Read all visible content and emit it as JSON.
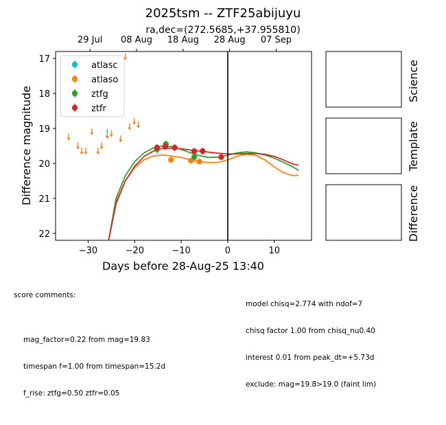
{
  "chart_data": {
    "type": "scatter",
    "title": "2025tsm -- ZTF25abijuyu",
    "subtitle": "ra,dec=(272.5685,+37.955810)",
    "xlabel": "Days before 28-Aug-25 13:40",
    "ylabel": "Difference magnitude",
    "xlim": [
      -37,
      18
    ],
    "ylim": [
      22.2,
      16.8
    ],
    "x_ticks": [
      -30,
      -20,
      -10,
      0,
      10
    ],
    "y_ticks": [
      17,
      18,
      19,
      20,
      21,
      22
    ],
    "top_axis_ticks": [
      {
        "x": -29.6,
        "label": "29 Jul"
      },
      {
        "x": -19.6,
        "label": "08 Aug"
      },
      {
        "x": -9.6,
        "label": "18 Aug"
      },
      {
        "x": 0.4,
        "label": "28 Aug"
      },
      {
        "x": 10.4,
        "label": "07 Sep"
      }
    ],
    "vline_x": 0,
    "legend_position": "upper-left",
    "series": [
      {
        "name": "atlasc",
        "color": "#17becf",
        "points": [
          [
            -25.9,
            19.1
          ]
        ],
        "limits": [
          [
            -25.9,
            19.2
          ]
        ]
      },
      {
        "name": "atlaso",
        "color": "#ff7f0e",
        "points": [
          [
            -12.2,
            19.9
          ],
          [
            -7.9,
            19.92
          ],
          [
            -6.1,
            19.95
          ]
        ],
        "limits": [
          [
            -34.2,
            19.25
          ],
          [
            -32.2,
            19.5
          ],
          [
            -31.4,
            19.65
          ],
          [
            -30.5,
            19.65
          ],
          [
            -29.2,
            19.1
          ],
          [
            -27.9,
            19.65
          ],
          [
            -27.1,
            19.5
          ],
          [
            -25.9,
            19.2
          ],
          [
            -25.0,
            19.15
          ],
          [
            -23.0,
            19.3
          ],
          [
            -22.0,
            16.95
          ],
          [
            -21.1,
            18.95
          ],
          [
            -20.1,
            18.8
          ],
          [
            -19.2,
            18.9
          ]
        ],
        "model": [
          [
            -25.6,
            22.2
          ],
          [
            -24,
            21.1
          ],
          [
            -22,
            20.5
          ],
          [
            -20,
            20.12
          ],
          [
            -18,
            19.9
          ],
          [
            -16,
            19.79
          ],
          [
            -14,
            19.76
          ],
          [
            -12,
            19.79
          ],
          [
            -10,
            19.83
          ],
          [
            -8,
            19.9
          ],
          [
            -6,
            19.95
          ],
          [
            -4,
            19.98
          ],
          [
            -2,
            19.97
          ],
          [
            0,
            19.9
          ],
          [
            2,
            19.8
          ],
          [
            4,
            19.74
          ],
          [
            6,
            19.77
          ],
          [
            8,
            19.9
          ],
          [
            10,
            20.1
          ],
          [
            12,
            20.27
          ],
          [
            14,
            20.35
          ],
          [
            15.2,
            20.34
          ]
        ]
      },
      {
        "name": "ztfg",
        "color": "#2ca02c",
        "points": [
          [
            -15.2,
            19.6
          ],
          [
            -13.3,
            19.45
          ],
          [
            -7.2,
            19.82
          ]
        ],
        "errors": [
          0.12,
          0.1,
          0.08
        ],
        "model": [
          [
            -25.6,
            22.2
          ],
          [
            -24,
            21.0
          ],
          [
            -22,
            20.35
          ],
          [
            -20,
            19.95
          ],
          [
            -18,
            19.7
          ],
          [
            -16,
            19.56
          ],
          [
            -14,
            19.5
          ],
          [
            -12,
            19.52
          ],
          [
            -10,
            19.6
          ],
          [
            -8,
            19.7
          ],
          [
            -6,
            19.78
          ],
          [
            -4,
            19.83
          ],
          [
            -2,
            19.82
          ],
          [
            0,
            19.77
          ],
          [
            2,
            19.7
          ],
          [
            4,
            19.67
          ],
          [
            6,
            19.7
          ],
          [
            8,
            19.76
          ],
          [
            10,
            19.85
          ],
          [
            12,
            19.97
          ],
          [
            14,
            20.1
          ],
          [
            15.2,
            20.2
          ]
        ]
      },
      {
        "name": "ztfr",
        "color": "#d62728",
        "points": [
          [
            -15.2,
            19.55
          ],
          [
            -13.4,
            19.52
          ],
          [
            -11.4,
            19.55
          ],
          [
            -7.2,
            19.65
          ],
          [
            -5.4,
            19.65
          ],
          [
            -1.4,
            19.82
          ]
        ],
        "errors": [
          0.1,
          0.1,
          0.1,
          0.09,
          0.1,
          0.08
        ],
        "model": [
          [
            -25.6,
            22.2
          ],
          [
            -24,
            21.15
          ],
          [
            -22,
            20.5
          ],
          [
            -20,
            20.08
          ],
          [
            -18,
            19.8
          ],
          [
            -16,
            19.65
          ],
          [
            -14,
            19.57
          ],
          [
            -12,
            19.56
          ],
          [
            -10,
            19.58
          ],
          [
            -8,
            19.62
          ],
          [
            -6,
            19.65
          ],
          [
            -4,
            19.68
          ],
          [
            -2,
            19.71
          ],
          [
            0,
            19.73
          ],
          [
            2,
            19.73
          ],
          [
            4,
            19.72
          ],
          [
            6,
            19.72
          ],
          [
            8,
            19.74
          ],
          [
            10,
            19.8
          ],
          [
            12,
            19.9
          ],
          [
            14,
            20.02
          ],
          [
            15.2,
            20.05
          ]
        ]
      }
    ]
  },
  "panels": {
    "science_label": "Science",
    "template_label": "Template",
    "difference_label": "Difference"
  },
  "footer": {
    "left_heading": "score comments:",
    "left_lines": [
      "mag_factor=0.22 from mag=19.83",
      "timespan f=1.00 from timespan=15.2d",
      "f_rise: ztfg=0.50 ztfr=0.05"
    ],
    "right_lines": [
      "model chisq=2.774 with ndof=7",
      "chisq factor 1.00 from chisq_nu0.40",
      "interest 0.01 from peak_dt=+5.73d",
      "exclude: mag=19.8>19.0 (faint lim)"
    ]
  }
}
